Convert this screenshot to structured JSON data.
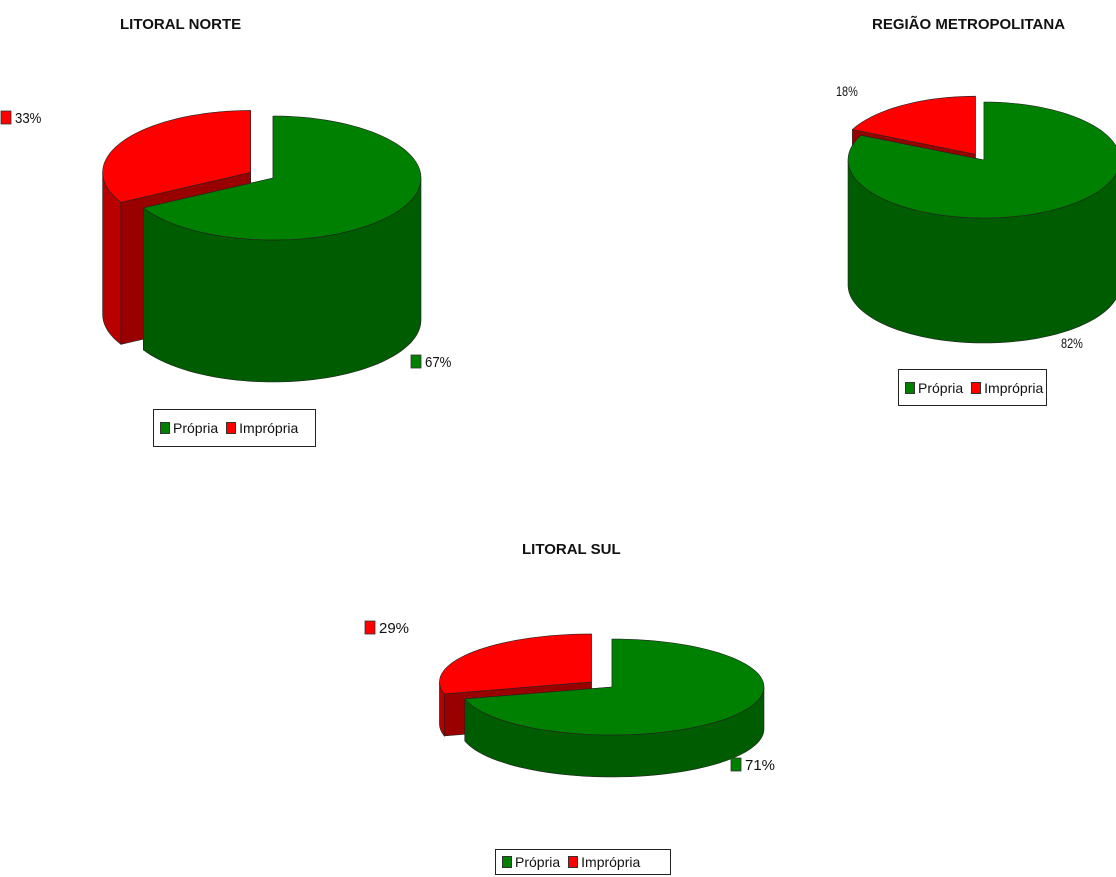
{
  "colors": {
    "propria": "#008000",
    "impropria": "#ff0000"
  },
  "legend": {
    "propria_label": "Própria",
    "impropria_label": "Imprópria"
  },
  "chart_data": [
    {
      "type": "pie",
      "title": "LITORAL NORTE",
      "categories": [
        "Própria",
        "Imprópria"
      ],
      "values": [
        67,
        33
      ],
      "labels": [
        "67%",
        "33%"
      ]
    },
    {
      "type": "pie",
      "title": "REGIÃO METROPOLITANA",
      "categories": [
        "Própria",
        "Imprópria"
      ],
      "values": [
        82,
        18
      ],
      "labels": [
        "82%",
        "18%"
      ]
    },
    {
      "type": "pie",
      "title": "LITORAL SUL",
      "categories": [
        "Própria",
        "Imprópria"
      ],
      "values": [
        71,
        29
      ],
      "labels": [
        "71%",
        "29%"
      ]
    }
  ]
}
